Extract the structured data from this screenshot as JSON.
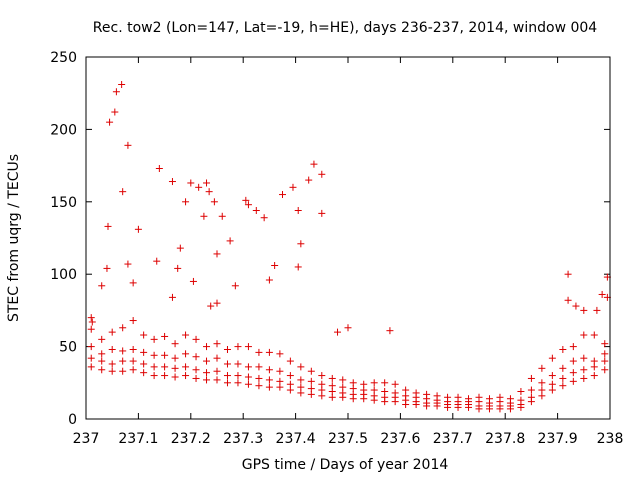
{
  "chart_data": {
    "type": "scatter",
    "title": "Rec. tow2 (Lon=147, Lat=-19, h=HE), days 236-237, 2014, window 004",
    "xlabel": "GPS time / Days of year 2014",
    "ylabel": "STEC from uqrg / TECUs",
    "xlim": [
      237,
      238
    ],
    "ylim": [
      0,
      250
    ],
    "x_ticks": [
      237,
      237.1,
      237.2,
      237.3,
      237.4,
      237.5,
      237.6,
      237.7,
      237.8,
      237.9,
      238
    ],
    "x_tick_labels": [
      "237",
      "237.1",
      "237.2",
      "237.3",
      "237.4",
      "237.5",
      "237.6",
      "237.7",
      "237.8",
      "237.9",
      "238"
    ],
    "y_ticks": [
      0,
      50,
      100,
      150,
      200,
      250
    ],
    "y_tick_labels": [
      "0",
      "50",
      "100",
      "150",
      "200",
      "250"
    ],
    "grid": false,
    "legend": "none",
    "marker": "plus",
    "color": "#dd0000",
    "series": [
      {
        "values": [
          [
            237.01,
            70
          ],
          [
            237.012,
            67
          ],
          [
            237.03,
            92
          ],
          [
            237.04,
            104
          ],
          [
            237.042,
            133
          ],
          [
            237.045,
            205
          ],
          [
            237.055,
            212
          ],
          [
            237.058,
            226
          ],
          [
            237.068,
            231
          ],
          [
            237.07,
            157
          ],
          [
            237.08,
            189
          ],
          [
            237.08,
            107
          ],
          [
            237.09,
            94
          ],
          [
            237.1,
            131
          ],
          [
            237.14,
            173
          ],
          [
            237.135,
            109
          ],
          [
            237.165,
            164
          ],
          [
            237.165,
            84
          ],
          [
            237.18,
            118
          ],
          [
            237.175,
            104
          ],
          [
            237.19,
            150
          ],
          [
            237.2,
            163
          ],
          [
            237.205,
            95
          ],
          [
            237.215,
            160
          ],
          [
            237.23,
            163
          ],
          [
            237.225,
            140
          ],
          [
            237.235,
            157
          ],
          [
            237.238,
            78
          ],
          [
            237.245,
            150
          ],
          [
            237.25,
            114
          ],
          [
            237.25,
            80
          ],
          [
            237.26,
            140
          ],
          [
            237.275,
            123
          ],
          [
            237.285,
            92
          ],
          [
            237.305,
            151
          ],
          [
            237.31,
            148
          ],
          [
            237.325,
            144
          ],
          [
            237.34,
            139
          ],
          [
            237.35,
            96
          ],
          [
            237.36,
            106
          ],
          [
            237.375,
            155
          ],
          [
            237.395,
            160
          ],
          [
            237.405,
            144
          ],
          [
            237.41,
            121
          ],
          [
            237.405,
            105
          ],
          [
            237.425,
            165
          ],
          [
            237.435,
            176
          ],
          [
            237.45,
            169
          ],
          [
            237.45,
            142
          ],
          [
            237.48,
            60
          ],
          [
            237.5,
            63
          ],
          [
            237.58,
            61
          ],
          [
            237.92,
            100
          ],
          [
            237.92,
            82
          ],
          [
            237.935,
            78
          ],
          [
            237.95,
            75
          ],
          [
            237.975,
            75
          ],
          [
            237.985,
            86
          ],
          [
            237.995,
            98
          ],
          [
            237.995,
            84
          ]
        ]
      },
      {
        "values": [
          [
            237.01,
            62
          ],
          [
            237.03,
            55
          ],
          [
            237.05,
            60
          ],
          [
            237.07,
            63
          ],
          [
            237.09,
            68
          ],
          [
            237.11,
            58
          ],
          [
            237.13,
            55
          ],
          [
            237.15,
            57
          ],
          [
            237.17,
            52
          ],
          [
            237.19,
            58
          ],
          [
            237.21,
            55
          ],
          [
            237.23,
            50
          ],
          [
            237.25,
            52
          ],
          [
            237.27,
            48
          ],
          [
            237.29,
            50
          ],
          [
            237.31,
            50
          ],
          [
            237.33,
            46
          ],
          [
            237.35,
            46
          ],
          [
            237.37,
            45
          ],
          [
            237.39,
            40
          ],
          [
            237.41,
            36
          ],
          [
            237.43,
            33
          ],
          [
            237.45,
            30
          ],
          [
            237.47,
            28
          ],
          [
            237.49,
            27
          ],
          [
            237.51,
            25
          ],
          [
            237.53,
            24
          ],
          [
            237.55,
            25
          ],
          [
            237.57,
            25
          ],
          [
            237.59,
            24
          ],
          [
            237.61,
            20
          ],
          [
            237.63,
            18
          ],
          [
            237.65,
            17
          ],
          [
            237.67,
            16
          ],
          [
            237.69,
            15
          ],
          [
            237.71,
            15
          ],
          [
            237.73,
            14
          ],
          [
            237.75,
            15
          ],
          [
            237.77,
            14
          ],
          [
            237.79,
            15
          ],
          [
            237.81,
            14
          ],
          [
            237.83,
            19
          ],
          [
            237.85,
            28
          ],
          [
            237.87,
            35
          ],
          [
            237.89,
            42
          ],
          [
            237.91,
            48
          ],
          [
            237.93,
            50
          ],
          [
            237.95,
            58
          ],
          [
            237.97,
            58
          ],
          [
            237.99,
            52
          ]
        ]
      },
      {
        "values": [
          [
            237.01,
            50
          ],
          [
            237.03,
            45
          ],
          [
            237.05,
            48
          ],
          [
            237.07,
            47
          ],
          [
            237.09,
            48
          ],
          [
            237.11,
            46
          ],
          [
            237.13,
            44
          ],
          [
            237.15,
            44
          ],
          [
            237.17,
            42
          ],
          [
            237.19,
            45
          ],
          [
            237.21,
            43
          ],
          [
            237.23,
            40
          ],
          [
            237.25,
            42
          ],
          [
            237.27,
            38
          ],
          [
            237.29,
            38
          ],
          [
            237.31,
            36
          ],
          [
            237.33,
            36
          ],
          [
            237.35,
            34
          ],
          [
            237.37,
            33
          ],
          [
            237.39,
            30
          ],
          [
            237.41,
            27
          ],
          [
            237.43,
            26
          ],
          [
            237.45,
            24
          ],
          [
            237.47,
            23
          ],
          [
            237.49,
            22
          ],
          [
            237.51,
            21
          ],
          [
            237.53,
            20
          ],
          [
            237.55,
            20
          ],
          [
            237.57,
            19
          ],
          [
            237.59,
            18
          ],
          [
            237.61,
            16
          ],
          [
            237.63,
            15
          ],
          [
            237.65,
            14
          ],
          [
            237.67,
            13
          ],
          [
            237.69,
            12
          ],
          [
            237.71,
            12
          ],
          [
            237.73,
            12
          ],
          [
            237.75,
            12
          ],
          [
            237.77,
            11
          ],
          [
            237.79,
            12
          ],
          [
            237.81,
            11
          ],
          [
            237.83,
            13
          ],
          [
            237.85,
            20
          ],
          [
            237.87,
            25
          ],
          [
            237.89,
            30
          ],
          [
            237.91,
            35
          ],
          [
            237.93,
            40
          ],
          [
            237.95,
            42
          ],
          [
            237.97,
            40
          ],
          [
            237.99,
            45
          ]
        ]
      },
      {
        "values": [
          [
            237.01,
            42
          ],
          [
            237.03,
            40
          ],
          [
            237.05,
            38
          ],
          [
            237.07,
            40
          ],
          [
            237.09,
            40
          ],
          [
            237.11,
            38
          ],
          [
            237.13,
            36
          ],
          [
            237.15,
            36
          ],
          [
            237.17,
            35
          ],
          [
            237.19,
            36
          ],
          [
            237.21,
            34
          ],
          [
            237.23,
            32
          ],
          [
            237.25,
            33
          ],
          [
            237.27,
            30
          ],
          [
            237.29,
            30
          ],
          [
            237.31,
            29
          ],
          [
            237.33,
            28
          ],
          [
            237.35,
            27
          ],
          [
            237.37,
            26
          ],
          [
            237.39,
            24
          ],
          [
            237.41,
            22
          ],
          [
            237.43,
            21
          ],
          [
            237.45,
            20
          ],
          [
            237.47,
            19
          ],
          [
            237.49,
            18
          ],
          [
            237.51,
            17
          ],
          [
            237.53,
            17
          ],
          [
            237.55,
            16
          ],
          [
            237.57,
            15
          ],
          [
            237.59,
            15
          ],
          [
            237.61,
            13
          ],
          [
            237.63,
            12
          ],
          [
            237.65,
            11
          ],
          [
            237.67,
            11
          ],
          [
            237.69,
            10
          ],
          [
            237.71,
            10
          ],
          [
            237.73,
            10
          ],
          [
            237.75,
            9
          ],
          [
            237.77,
            9
          ],
          [
            237.79,
            9
          ],
          [
            237.81,
            9
          ],
          [
            237.83,
            10
          ],
          [
            237.85,
            15
          ],
          [
            237.87,
            20
          ],
          [
            237.89,
            24
          ],
          [
            237.91,
            28
          ],
          [
            237.93,
            32
          ],
          [
            237.95,
            34
          ],
          [
            237.97,
            36
          ],
          [
            237.99,
            40
          ]
        ]
      },
      {
        "values": [
          [
            237.01,
            36
          ],
          [
            237.03,
            34
          ],
          [
            237.05,
            33
          ],
          [
            237.07,
            33
          ],
          [
            237.09,
            34
          ],
          [
            237.11,
            32
          ],
          [
            237.13,
            30
          ],
          [
            237.15,
            30
          ],
          [
            237.17,
            29
          ],
          [
            237.19,
            30
          ],
          [
            237.21,
            28
          ],
          [
            237.23,
            27
          ],
          [
            237.25,
            27
          ],
          [
            237.27,
            25
          ],
          [
            237.29,
            25
          ],
          [
            237.31,
            24
          ],
          [
            237.33,
            23
          ],
          [
            237.35,
            22
          ],
          [
            237.37,
            22
          ],
          [
            237.39,
            20
          ],
          [
            237.41,
            18
          ],
          [
            237.43,
            17
          ],
          [
            237.45,
            16
          ],
          [
            237.47,
            15
          ],
          [
            237.49,
            15
          ],
          [
            237.51,
            14
          ],
          [
            237.53,
            14
          ],
          [
            237.55,
            13
          ],
          [
            237.57,
            12
          ],
          [
            237.59,
            12
          ],
          [
            237.61,
            10
          ],
          [
            237.63,
            10
          ],
          [
            237.65,
            9
          ],
          [
            237.67,
            9
          ],
          [
            237.69,
            8
          ],
          [
            237.71,
            8
          ],
          [
            237.73,
            8
          ],
          [
            237.75,
            7
          ],
          [
            237.77,
            7
          ],
          [
            237.79,
            7
          ],
          [
            237.81,
            7
          ],
          [
            237.83,
            8
          ],
          [
            237.85,
            12
          ],
          [
            237.87,
            16
          ],
          [
            237.89,
            20
          ],
          [
            237.91,
            23
          ],
          [
            237.93,
            26
          ],
          [
            237.95,
            28
          ],
          [
            237.97,
            30
          ],
          [
            237.99,
            34
          ]
        ]
      }
    ]
  }
}
